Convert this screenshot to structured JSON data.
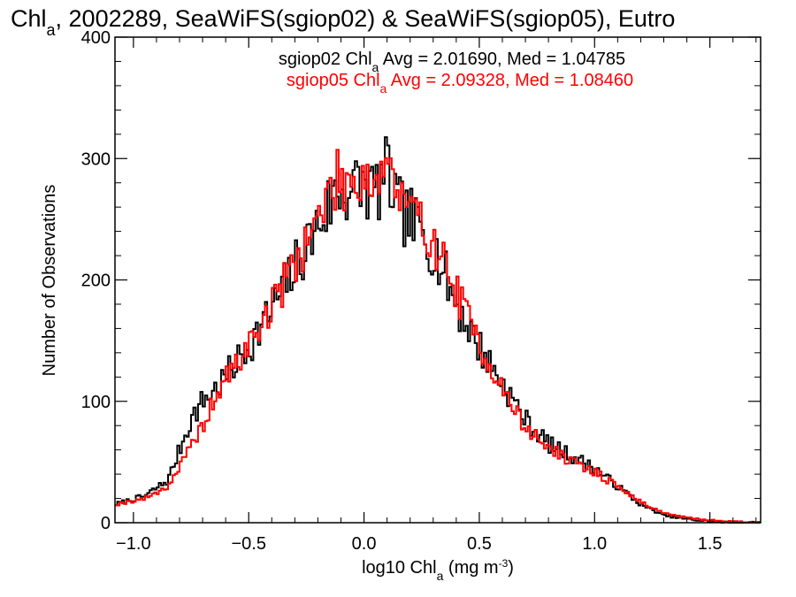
{
  "chart_data": {
    "type": "line",
    "title": {
      "prefix": "Chl",
      "sub": "a",
      "suffix": ", 2002289, SeaWiFS(sgiop02) & SeaWiFS(sgiop05), Eutro"
    },
    "xlabel": {
      "prefix": "log10 Chl",
      "sub": "a",
      "units": " (mg m",
      "sup": "-3",
      "close": ")"
    },
    "ylabel": "Number of Observations",
    "xlim": [
      -1.08,
      1.72
    ],
    "ylim": [
      0,
      400
    ],
    "x_ticks": [
      -1.0,
      -0.5,
      0.0,
      0.5,
      1.0,
      1.5
    ],
    "x_tick_labels": [
      "−1.0",
      "−0.5",
      "0.0",
      "0.5",
      "1.0",
      "1.5"
    ],
    "y_ticks": [
      0,
      100,
      200,
      300,
      400
    ],
    "y_tick_labels": [
      "0",
      "100",
      "200",
      "300",
      "400"
    ],
    "x_minor_step": 0.1,
    "y_minor_step": 20,
    "stats": [
      {
        "prefix": "sgiop02 Chl",
        "sub": "a",
        "suffix": " Avg = 2.01690, Med = 1.04785",
        "color": "#000000"
      },
      {
        "prefix": "sgiop05 Chl",
        "sub": "a",
        "suffix": " Avg = 2.09328, Med = 1.08460",
        "color": "#ff0000"
      }
    ],
    "bin_width": 0.01,
    "series": [
      {
        "color": "#000000",
        "profile": [
          [
            -1.08,
            15
          ],
          [
            -0.95,
            22
          ],
          [
            -0.85,
            35
          ],
          [
            -0.75,
            85
          ],
          [
            -0.7,
            100
          ],
          [
            -0.62,
            115
          ],
          [
            -0.52,
            140
          ],
          [
            -0.4,
            175
          ],
          [
            -0.3,
            210
          ],
          [
            -0.2,
            245
          ],
          [
            -0.12,
            272
          ],
          [
            -0.05,
            275
          ],
          [
            0.0,
            278
          ],
          [
            0.05,
            272
          ],
          [
            0.1,
            288
          ],
          [
            0.15,
            258
          ],
          [
            0.2,
            250
          ],
          [
            0.3,
            228
          ],
          [
            0.4,
            180
          ],
          [
            0.5,
            145
          ],
          [
            0.6,
            115
          ],
          [
            0.7,
            85
          ],
          [
            0.8,
            65
          ],
          [
            0.9,
            55
          ],
          [
            1.0,
            45
          ],
          [
            1.1,
            30
          ],
          [
            1.2,
            15
          ],
          [
            1.3,
            6
          ],
          [
            1.4,
            3
          ],
          [
            1.5,
            1
          ],
          [
            1.6,
            0
          ],
          [
            1.72,
            0
          ]
        ],
        "noise": 0.11,
        "seed": 7
      },
      {
        "color": "#ff0000",
        "profile": [
          [
            -1.08,
            15
          ],
          [
            -0.95,
            20
          ],
          [
            -0.85,
            30
          ],
          [
            -0.75,
            62
          ],
          [
            -0.7,
            80
          ],
          [
            -0.62,
            112
          ],
          [
            -0.52,
            140
          ],
          [
            -0.4,
            178
          ],
          [
            -0.3,
            215
          ],
          [
            -0.2,
            250
          ],
          [
            -0.12,
            282
          ],
          [
            -0.05,
            282
          ],
          [
            0.0,
            288
          ],
          [
            0.05,
            280
          ],
          [
            0.1,
            300
          ],
          [
            0.15,
            268
          ],
          [
            0.2,
            255
          ],
          [
            0.3,
            235
          ],
          [
            0.4,
            190
          ],
          [
            0.5,
            148
          ],
          [
            0.6,
            110
          ],
          [
            0.7,
            78
          ],
          [
            0.8,
            62
          ],
          [
            0.9,
            50
          ],
          [
            1.0,
            42
          ],
          [
            1.1,
            30
          ],
          [
            1.2,
            17
          ],
          [
            1.3,
            8
          ],
          [
            1.4,
            4
          ],
          [
            1.5,
            2
          ],
          [
            1.6,
            1
          ],
          [
            1.72,
            0
          ]
        ],
        "noise": 0.09,
        "seed": 19
      }
    ]
  }
}
